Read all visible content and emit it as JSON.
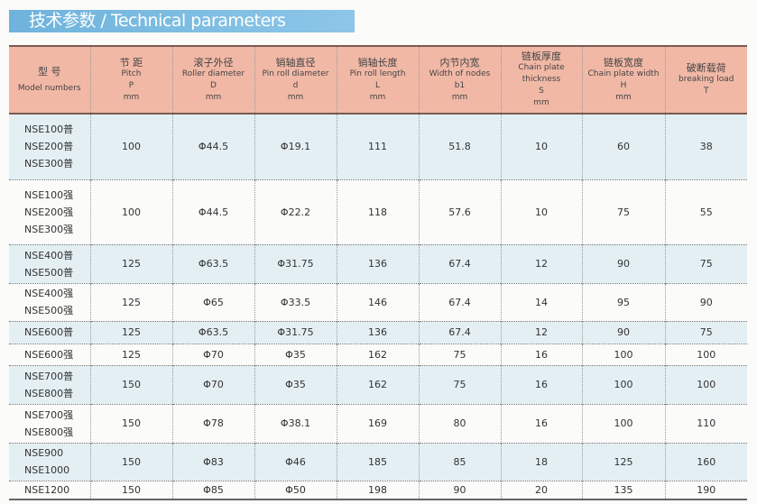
{
  "title": "技术参数 / Technical parameters",
  "headers": [
    {
      "cn": "型 号",
      "en": "Model numbers",
      "sym": "",
      "unit": ""
    },
    {
      "cn": "节 距",
      "en": "Pitch",
      "sym": "P",
      "unit": "mm"
    },
    {
      "cn": "滚子外径",
      "en": "Roller diameter",
      "sym": "D",
      "unit": "mm"
    },
    {
      "cn": "销轴直径",
      "en": "Pin roll diameter",
      "sym": "d",
      "unit": "mm"
    },
    {
      "cn": "销轴长度",
      "en": "Pin roll length",
      "sym": "L",
      "unit": "mm"
    },
    {
      "cn": "内节内宽",
      "en": "Width of nodes",
      "sym": "b1",
      "unit": "mm"
    },
    {
      "cn": "链板厚度",
      "en": "Chain plate thickness",
      "sym": "S",
      "unit": "mm"
    },
    {
      "cn": "链板宽度",
      "en": "Chain plate width",
      "sym": "H",
      "unit": "mm"
    },
    {
      "cn": "破断载荷",
      "en": "breaking load",
      "sym": "",
      "unit": "T"
    }
  ],
  "rows": [
    {
      "models": [
        "NSE100普",
        "NSE200普",
        "NSE300普"
      ],
      "values": [
        "100",
        "Φ44.5",
        "Φ19.1",
        "111",
        "51.8",
        "10",
        "60",
        "38"
      ]
    },
    {
      "models": [
        "NSE100强",
        "NSE200强",
        "NSE300强"
      ],
      "values": [
        "100",
        "Φ44.5",
        "Φ22.2",
        "118",
        "57.6",
        "10",
        "75",
        "55"
      ]
    },
    {
      "models": [
        "NSE400普",
        "NSE500普"
      ],
      "values": [
        "125",
        "Φ63.5",
        "Φ31.75",
        "136",
        "67.4",
        "12",
        "90",
        "75"
      ]
    },
    {
      "models": [
        "NSE400强",
        "NSE500强"
      ],
      "values": [
        "125",
        "Φ65",
        "Φ33.5",
        "146",
        "67.4",
        "14",
        "95",
        "90"
      ]
    },
    {
      "models": [
        "NSE600普"
      ],
      "values": [
        "125",
        "Φ63.5",
        "Φ31.75",
        "136",
        "67.4",
        "12",
        "90",
        "75"
      ]
    },
    {
      "models": [
        "NSE600强"
      ],
      "values": [
        "125",
        "Φ70",
        "Φ35",
        "162",
        "75",
        "16",
        "100",
        "100"
      ]
    },
    {
      "models": [
        "NSE700普",
        "NSE800普"
      ],
      "values": [
        "150",
        "Φ70",
        "Φ35",
        "162",
        "75",
        "16",
        "100",
        "100"
      ]
    },
    {
      "models": [
        "NSE700强",
        "NSE800强"
      ],
      "values": [
        "150",
        "Φ78",
        "Φ38.1",
        "169",
        "80",
        "16",
        "100",
        "110"
      ]
    },
    {
      "models": [
        "NSE900",
        "NSE1000"
      ],
      "values": [
        "150",
        "Φ83",
        "Φ46",
        "185",
        "85",
        "18",
        "125",
        "160"
      ]
    },
    {
      "models": [
        "NSE1200"
      ],
      "values": [
        "150",
        "Φ85",
        "Φ50",
        "198",
        "90",
        "20",
        "135",
        "190"
      ]
    }
  ]
}
